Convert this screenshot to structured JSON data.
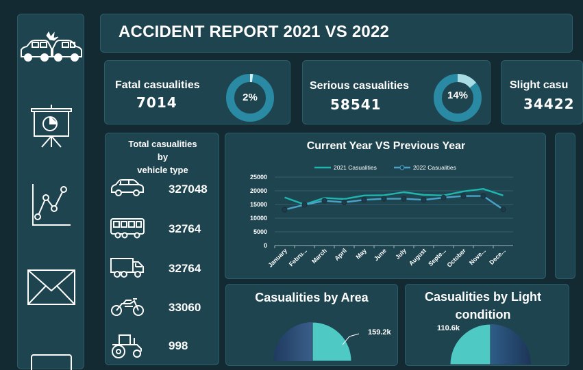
{
  "header": {
    "title": "ACCIDENT REPORT 2021 VS 2022"
  },
  "sidebar": {
    "icons": [
      "car-crash-icon",
      "presentation-chart-icon",
      "line-chart-icon",
      "mail-icon"
    ]
  },
  "kpis": [
    {
      "label": "Fatal casualities",
      "value": "7014",
      "percent_label": "2%",
      "percent": 0.02
    },
    {
      "label": "Serious casualities",
      "value": "58541",
      "percent_label": "14%",
      "percent": 0.14
    },
    {
      "label": "Slight casu",
      "value": "34422"
    }
  ],
  "vehicles": {
    "title": "Total casualities by vehicle type",
    "rows": [
      {
        "icon": "car-icon",
        "value": "327048"
      },
      {
        "icon": "bus-icon",
        "value": "32764"
      },
      {
        "icon": "truck-icon",
        "value": "32764"
      },
      {
        "icon": "motorcycle-icon",
        "value": "33060"
      },
      {
        "icon": "tractor-icon",
        "value": "998"
      }
    ]
  },
  "colors": {
    "accent": "#1fb6b0",
    "series2022": "#4aa3c6",
    "panel": "#1e4450",
    "background": "#132a32",
    "pie_teal": "#4ec9c4",
    "pie_dark": "#2b4a7a"
  },
  "chart_data": [
    {
      "type": "line",
      "title": "Current Year VS Previous Year",
      "categories": [
        "January",
        "Febru...",
        "March",
        "April",
        "May",
        "June",
        "July",
        "August",
        "Septe...",
        "October",
        "Nove...",
        "Dece..."
      ],
      "series": [
        {
          "name": "2021 Casualities",
          "values": [
            17600,
            15000,
            17400,
            17000,
            18300,
            18400,
            19500,
            18500,
            18300,
            19800,
            20700,
            18300
          ]
        },
        {
          "name": "2022 Casualities",
          "values": [
            13100,
            14900,
            16400,
            15800,
            16700,
            17100,
            17100,
            16700,
            17500,
            18100,
            18100,
            13200
          ]
        }
      ],
      "yticks": [
        "25000",
        "20000",
        "15000",
        "10000",
        "5000",
        "0"
      ],
      "ylim": [
        0,
        25000
      ],
      "legend": "top",
      "grid": true
    },
    {
      "type": "pie",
      "title": "Casualities by Area",
      "data_labels": [
        "159.2k"
      ]
    },
    {
      "type": "pie",
      "title": "Casualities by Light condition",
      "data_labels": [
        "110.6k"
      ]
    }
  ]
}
